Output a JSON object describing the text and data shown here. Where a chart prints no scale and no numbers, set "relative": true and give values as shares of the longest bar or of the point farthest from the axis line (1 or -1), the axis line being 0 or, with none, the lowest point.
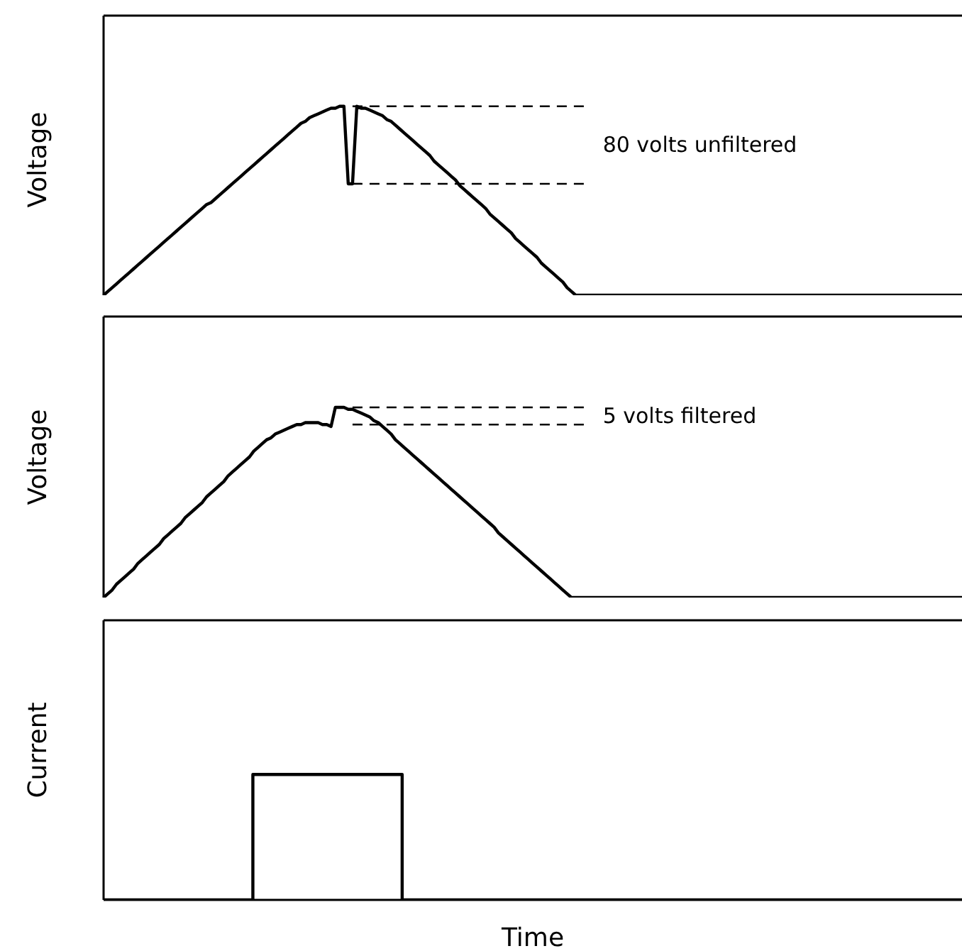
{
  "chart_data": [
    {
      "type": "line",
      "ylabel": "Voltage",
      "relative": true,
      "color": "#000000",
      "categories": [
        null,
        null,
        null,
        null,
        null,
        null,
        null,
        null,
        null,
        null,
        null,
        null,
        null,
        null,
        null,
        null,
        null,
        null,
        null,
        null,
        null,
        null,
        null,
        null,
        null,
        null,
        null,
        null,
        null,
        null,
        null,
        null,
        null,
        null,
        null,
        null,
        null,
        null,
        null,
        null,
        null,
        null,
        null,
        null,
        null,
        null,
        null,
        null,
        null,
        null,
        null,
        null,
        null,
        null,
        null,
        null,
        null,
        null,
        null,
        null,
        null,
        null,
        null,
        null,
        null,
        null,
        null,
        null,
        null,
        null,
        null,
        null,
        null,
        null,
        null,
        null,
        null,
        null,
        null,
        null,
        null,
        null,
        null,
        null,
        null,
        null,
        null,
        null,
        null,
        null,
        null,
        null,
        null,
        null,
        null,
        null,
        null,
        null,
        null,
        null,
        null,
        null,
        null,
        null,
        null,
        null,
        null,
        null,
        null,
        null,
        null,
        null,
        null,
        null,
        null,
        null,
        null,
        null,
        null,
        null,
        null,
        null,
        null,
        null,
        null,
        null,
        null,
        null,
        null,
        null,
        null,
        null,
        null,
        null,
        null,
        null,
        null,
        null,
        null,
        null,
        null,
        null,
        null,
        null,
        null,
        null,
        null,
        null,
        null,
        null,
        null,
        null,
        null,
        null,
        null,
        null,
        null,
        null,
        null,
        null,
        null,
        null,
        null,
        null,
        null,
        null,
        null,
        null,
        null,
        null,
        null,
        null,
        null,
        null,
        null,
        null,
        null,
        null,
        null,
        null,
        null,
        null,
        null,
        null,
        null,
        null,
        null,
        null,
        null,
        null,
        null,
        null,
        null,
        null,
        null,
        null,
        null,
        null,
        null,
        null,
        null
      ],
      "values": [
        0,
        0.02,
        0.04,
        0.06,
        0.08,
        0.1,
        0.12,
        0.14,
        0.16,
        0.18,
        0.2,
        0.22,
        0.24,
        0.26,
        0.28,
        0.3,
        0.32,
        0.34,
        0.36,
        0.38,
        0.4,
        0.42,
        0.44,
        0.46,
        0.48,
        0.49,
        0.51,
        0.53,
        0.55,
        0.57,
        0.59,
        0.61,
        0.63,
        0.65,
        0.67,
        0.69,
        0.71,
        0.73,
        0.75,
        0.77,
        0.79,
        0.81,
        0.83,
        0.85,
        0.87,
        0.89,
        0.91,
        0.92,
        0.94,
        0.95,
        0.96,
        0.97,
        0.98,
        0.99,
        0.99,
        1,
        1,
        0.59,
        0.59,
        1,
        0.99,
        0.99,
        0.98,
        0.97,
        0.96,
        0.95,
        0.93,
        0.92,
        0.9,
        0.88,
        0.86,
        0.84,
        0.82,
        0.8,
        0.78,
        0.76,
        0.74,
        0.71,
        0.69,
        0.67,
        0.65,
        0.63,
        0.61,
        0.58,
        0.56,
        0.54,
        0.52,
        0.5,
        0.48,
        0.46,
        0.43,
        0.41,
        0.39,
        0.37,
        0.35,
        0.33,
        0.3,
        0.28,
        0.26,
        0.24,
        0.22,
        0.2,
        0.17,
        0.15,
        0.13,
        0.11,
        0.09,
        0.07,
        0.04,
        0.02,
        0,
        0,
        0,
        0,
        0,
        0,
        0,
        0,
        0,
        0,
        0,
        0,
        0,
        0,
        0,
        0,
        0,
        0,
        0,
        0,
        0,
        0,
        0,
        0,
        0,
        0,
        0,
        0,
        0,
        0,
        0,
        0,
        0,
        0,
        0,
        0,
        0,
        0,
        0,
        0,
        0,
        0,
        0,
        0,
        0,
        0,
        0,
        0,
        0,
        0,
        0,
        0,
        0,
        0,
        0,
        0,
        0,
        0,
        0,
        0,
        0,
        0,
        0,
        0,
        0,
        0,
        0,
        0,
        0,
        0,
        0,
        0,
        0,
        0,
        0,
        0,
        0,
        0,
        0,
        0,
        0,
        0,
        0,
        0,
        0,
        0,
        0,
        0,
        0,
        0,
        0
      ],
      "ref_lines": [
        {
          "axis": "y",
          "value": 1,
          "color": "#000000",
          "line_style": "dashed"
        },
        {
          "axis": "y",
          "value": 0.59,
          "color": "#000000",
          "line_style": "dashed"
        }
      ],
      "annotations": [
        "80 volts unfiltered"
      ]
    },
    {
      "type": "line",
      "ylabel": "Voltage",
      "relative": true,
      "color": "#000000",
      "categories": [
        null,
        null,
        null,
        null,
        null,
        null,
        null,
        null,
        null,
        null,
        null,
        null,
        null,
        null,
        null,
        null,
        null,
        null,
        null,
        null,
        null,
        null,
        null,
        null,
        null,
        null,
        null,
        null,
        null,
        null,
        null,
        null,
        null,
        null,
        null,
        null,
        null,
        null,
        null,
        null,
        null,
        null,
        null,
        null,
        null,
        null,
        null,
        null,
        null,
        null,
        null,
        null,
        null,
        null,
        null,
        null,
        null,
        null,
        null,
        null,
        null,
        null,
        null,
        null,
        null,
        null,
        null,
        null,
        null,
        null,
        null,
        null,
        null,
        null,
        null,
        null,
        null,
        null,
        null,
        null,
        null,
        null,
        null,
        null,
        null,
        null,
        null,
        null,
        null,
        null,
        null,
        null,
        null,
        null,
        null,
        null,
        null,
        null,
        null,
        null,
        null,
        null,
        null,
        null,
        null,
        null,
        null,
        null,
        null,
        null,
        null,
        null,
        null,
        null,
        null,
        null,
        null,
        null,
        null,
        null,
        null,
        null,
        null,
        null,
        null,
        null,
        null,
        null,
        null,
        null,
        null,
        null,
        null,
        null,
        null,
        null,
        null,
        null,
        null,
        null,
        null,
        null,
        null,
        null,
        null,
        null,
        null,
        null,
        null,
        null,
        null,
        null,
        null,
        null,
        null,
        null,
        null,
        null,
        null,
        null,
        null,
        null,
        null,
        null,
        null,
        null,
        null,
        null,
        null,
        null,
        null,
        null,
        null,
        null,
        null,
        null,
        null,
        null,
        null,
        null,
        null,
        null,
        null,
        null,
        null,
        null,
        null,
        null,
        null,
        null,
        null,
        null,
        null,
        null,
        null,
        null,
        null,
        null,
        null,
        null,
        null
      ],
      "values": [
        0,
        0.02,
        0.04,
        0.07,
        0.09,
        0.11,
        0.13,
        0.15,
        0.18,
        0.2,
        0.22,
        0.24,
        0.26,
        0.28,
        0.31,
        0.33,
        0.35,
        0.37,
        0.39,
        0.42,
        0.44,
        0.46,
        0.48,
        0.5,
        0.53,
        0.55,
        0.57,
        0.59,
        0.61,
        0.64,
        0.66,
        0.68,
        0.7,
        0.72,
        0.74,
        0.77,
        0.79,
        0.81,
        0.83,
        0.84,
        0.86,
        0.87,
        0.88,
        0.89,
        0.9,
        0.91,
        0.91,
        0.92,
        0.92,
        0.92,
        0.92,
        0.91,
        0.91,
        0.9,
        1,
        1,
        1,
        0.99,
        0.99,
        0.98,
        0.97,
        0.96,
        0.95,
        0.93,
        0.92,
        0.9,
        0.88,
        0.86,
        0.83,
        0.81,
        0.79,
        0.77,
        0.75,
        0.73,
        0.71,
        0.69,
        0.67,
        0.65,
        0.63,
        0.61,
        0.59,
        0.57,
        0.55,
        0.53,
        0.51,
        0.49,
        0.47,
        0.45,
        0.43,
        0.41,
        0.39,
        0.37,
        0.34,
        0.32,
        0.3,
        0.28,
        0.26,
        0.24,
        0.22,
        0.2,
        0.18,
        0.16,
        0.14,
        0.12,
        0.1,
        0.08,
        0.06,
        0.04,
        0.02,
        0,
        0,
        0,
        0,
        0,
        0,
        0,
        0,
        0,
        0,
        0,
        0,
        0,
        0,
        0,
        0,
        0,
        0,
        0,
        0,
        0,
        0,
        0,
        0,
        0,
        0,
        0,
        0,
        0,
        0,
        0,
        0,
        0,
        0,
        0,
        0,
        0,
        0,
        0,
        0,
        0,
        0,
        0,
        0,
        0,
        0,
        0,
        0,
        0,
        0,
        0,
        0,
        0,
        0,
        0,
        0,
        0,
        0,
        0,
        0,
        0,
        0,
        0,
        0,
        0,
        0,
        0,
        0,
        0,
        0,
        0,
        0,
        0,
        0,
        0,
        0,
        0,
        0,
        0,
        0,
        0,
        0,
        0,
        0,
        0,
        0,
        0,
        0,
        0,
        0,
        0,
        0
      ],
      "ref_lines": [
        {
          "axis": "y",
          "value": 1,
          "color": "#000000",
          "line_style": "dashed"
        },
        {
          "axis": "y",
          "value": 0.91,
          "color": "#000000",
          "line_style": "dashed"
        }
      ],
      "annotations": [
        "5 volts filtered"
      ]
    },
    {
      "type": "step",
      "ylabel": "Current",
      "xlabel": "Time",
      "relative": true,
      "color": "#000000",
      "categories": [
        null,
        null,
        null,
        null,
        null,
        null,
        null,
        null,
        null,
        null,
        null,
        null,
        null,
        null,
        null,
        null,
        null,
        null,
        null,
        null,
        null,
        null,
        null,
        null
      ],
      "values": [
        0,
        0,
        0,
        0,
        1,
        1,
        1,
        1,
        0,
        0,
        0,
        0,
        0,
        0,
        0,
        0,
        0,
        0,
        0,
        0,
        0,
        0,
        0,
        0
      ]
    }
  ]
}
